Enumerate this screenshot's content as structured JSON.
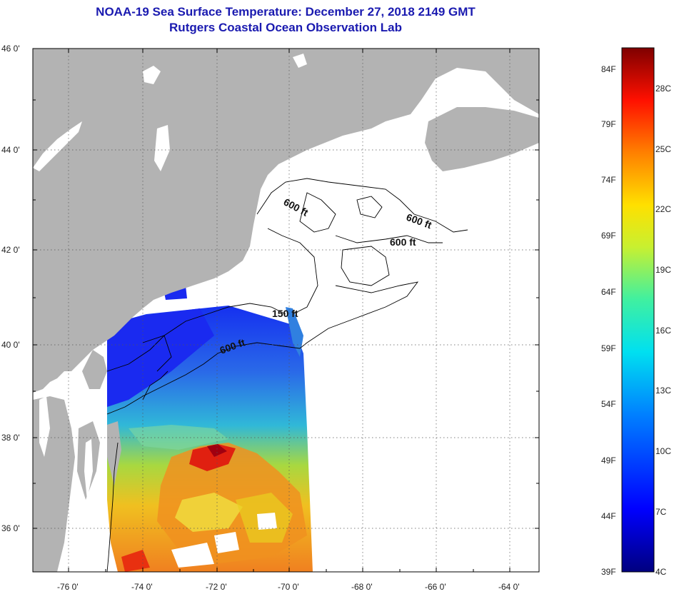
{
  "title": {
    "line1": "NOAA-19 Sea Surface Temperature:  December 27, 2018 2149 GMT",
    "line2": "Rutgers Coastal Ocean Observation Lab"
  },
  "map": {
    "lat_labels": [
      "46 0'",
      "44 0'",
      "42 0'",
      "40 0'",
      "38 0'",
      "36 0'"
    ],
    "lon_labels": [
      "-76 0'",
      "-74 0'",
      "-72 0'",
      "-70 0'",
      "-68 0'",
      "-66 0'",
      "-64 0'"
    ],
    "depth_labels": [
      "600 ft",
      "600 ft",
      "600 ft",
      "150 ft",
      "600 ft"
    ],
    "colors": {
      "land": "#b3b3b3",
      "cloud": "#ffffff",
      "contour": "#000000",
      "grid": "#555555"
    }
  },
  "colorbar": {
    "fahrenheit": [
      "84F",
      "79F",
      "74F",
      "69F",
      "64F",
      "59F",
      "54F",
      "49F",
      "44F",
      "39F"
    ],
    "celsius": [
      "28C",
      "25C",
      "22C",
      "19C",
      "16C",
      "13C",
      "10C",
      "7C",
      "4C"
    ],
    "colors": [
      "#00007f",
      "#0000ff",
      "#0080ff",
      "#00e0f0",
      "#40f0a0",
      "#c8f030",
      "#ffe000",
      "#ff8000",
      "#ff1000",
      "#7f0000"
    ]
  }
}
